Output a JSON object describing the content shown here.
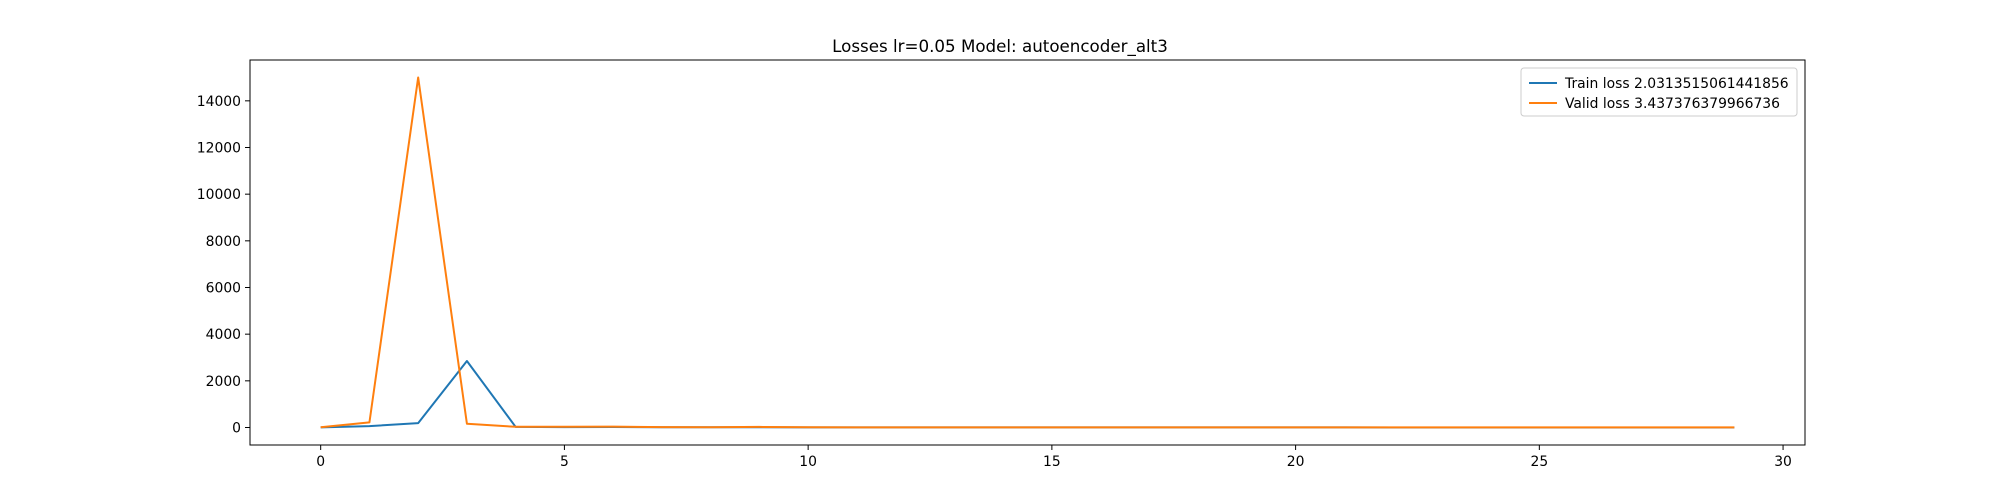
{
  "chart_data": {
    "type": "line",
    "title": "Losses lr=0.05 Model: autoencoder_alt3",
    "xlabel": "",
    "ylabel": "",
    "xlim": [
      -1.45,
      30.45
    ],
    "ylim": [
      -750,
      15750
    ],
    "xticks": [
      0,
      5,
      10,
      15,
      20,
      25,
      30
    ],
    "yticks": [
      0,
      2000,
      4000,
      6000,
      8000,
      10000,
      12000,
      14000
    ],
    "grid": false,
    "legend_position": "upper right",
    "series": [
      {
        "name": "Train loss 2.0313515061441856",
        "color": "#1f77b4",
        "x": [
          0,
          1,
          2,
          3,
          4,
          5,
          6,
          7,
          8,
          9,
          10,
          11,
          12,
          13,
          14,
          15,
          16,
          17,
          18,
          19,
          20,
          21,
          22,
          23,
          24,
          25,
          26,
          27,
          28,
          29
        ],
        "y": [
          5,
          60,
          190,
          2850,
          25,
          15,
          20,
          10,
          8,
          12,
          5,
          4,
          4,
          3,
          3,
          3,
          3,
          3,
          3,
          3,
          3,
          3,
          2,
          2,
          2,
          2,
          2,
          2,
          2,
          2
        ]
      },
      {
        "name": "Valid loss 3.437376379966736",
        "color": "#ff7f0e",
        "x": [
          0,
          1,
          2,
          3,
          4,
          5,
          6,
          7,
          8,
          9,
          10,
          11,
          12,
          13,
          14,
          15,
          16,
          17,
          18,
          19,
          20,
          21,
          22,
          23,
          24,
          25,
          26,
          27,
          28,
          29
        ],
        "y": [
          10,
          220,
          15000,
          160,
          30,
          30,
          40,
          15,
          10,
          25,
          8,
          6,
          5,
          5,
          5,
          5,
          4,
          4,
          4,
          4,
          4,
          4,
          4,
          4,
          4,
          4,
          4,
          3.5,
          3.5,
          3.5
        ]
      }
    ]
  }
}
